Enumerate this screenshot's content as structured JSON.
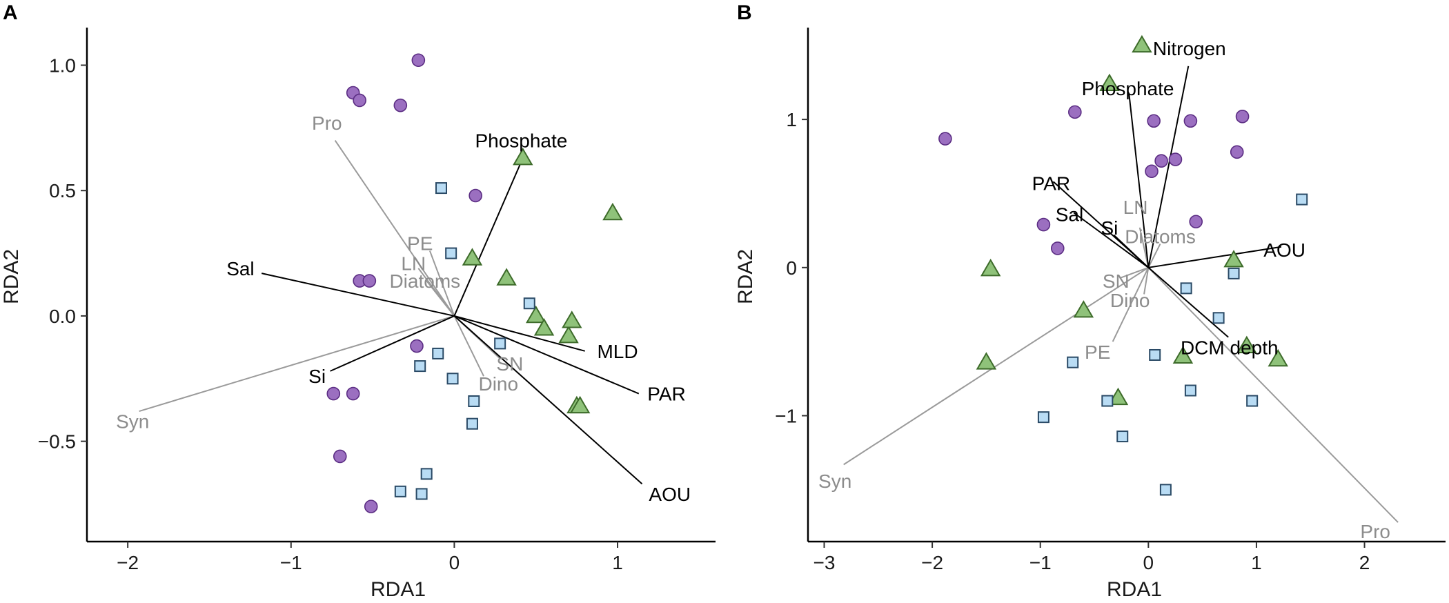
{
  "colors": {
    "circle_fill": "#9b6fc0",
    "circle_stroke": "#5b2d83",
    "triangle_fill": "#8fc27a",
    "triangle_stroke": "#3d6b2a",
    "square_fill": "#b9dcf4",
    "square_stroke": "#2a4a66",
    "env_vector": "#000000",
    "taxa_vector": "#9a9a9a",
    "env_label": "#000000",
    "taxa_label": "#8c8c8c"
  },
  "chart_data": [
    {
      "panel": "A",
      "type": "scatter",
      "xlabel": "RDA1",
      "ylabel": "RDA2",
      "xlim": [
        -2.25,
        1.6
      ],
      "ylim": [
        -0.9,
        1.15
      ],
      "xticks": [
        -2,
        -1,
        0,
        1
      ],
      "xtick_labels": [
        "−2",
        "−1",
        "0",
        "1"
      ],
      "yticks": [
        -0.5,
        0.0,
        0.5,
        1.0
      ],
      "ytick_labels": [
        "−0.5",
        "0.0",
        "0.5",
        "1.0"
      ],
      "series": [
        {
          "name": "circle",
          "marker": "circle",
          "points": [
            [
              -0.22,
              1.02
            ],
            [
              -0.62,
              0.89
            ],
            [
              -0.58,
              0.86
            ],
            [
              -0.33,
              0.84
            ],
            [
              0.13,
              0.48
            ],
            [
              -0.58,
              0.14
            ],
            [
              -0.52,
              0.14
            ],
            [
              -0.23,
              -0.12
            ],
            [
              -0.74,
              -0.31
            ],
            [
              -0.62,
              -0.31
            ],
            [
              -0.7,
              -0.56
            ],
            [
              -0.51,
              -0.76
            ]
          ]
        },
        {
          "name": "triangle",
          "marker": "triangle",
          "points": [
            [
              0.42,
              0.63
            ],
            [
              0.97,
              0.41
            ],
            [
              0.11,
              0.23
            ],
            [
              0.32,
              0.15
            ],
            [
              0.5,
              0.0
            ],
            [
              0.55,
              -0.05
            ],
            [
              0.7,
              -0.08
            ],
            [
              0.72,
              -0.02
            ],
            [
              0.75,
              -0.36
            ],
            [
              0.77,
              -0.36
            ]
          ]
        },
        {
          "name": "square",
          "marker": "square",
          "points": [
            [
              -0.08,
              0.51
            ],
            [
              -0.02,
              0.25
            ],
            [
              0.46,
              0.05
            ],
            [
              0.28,
              -0.11
            ],
            [
              -0.1,
              -0.15
            ],
            [
              -0.21,
              -0.2
            ],
            [
              -0.01,
              -0.25
            ],
            [
              0.12,
              -0.34
            ],
            [
              0.11,
              -0.43
            ],
            [
              -0.17,
              -0.63
            ],
            [
              -0.33,
              -0.7
            ],
            [
              -0.2,
              -0.71
            ]
          ]
        }
      ],
      "env_vectors": [
        {
          "label": "Phosphate",
          "end": [
            0.42,
            0.63
          ],
          "label_pos": [
            0.41,
            0.7
          ]
        },
        {
          "label": "Sal",
          "end": [
            -1.18,
            0.17
          ],
          "label_pos": [
            -1.31,
            0.19
          ]
        },
        {
          "label": "Si",
          "end": [
            -0.76,
            -0.22
          ],
          "label_pos": [
            -0.84,
            -0.24
          ]
        },
        {
          "label": "MLD",
          "end": [
            0.8,
            -0.14
          ],
          "label_pos": [
            1.0,
            -0.14
          ]
        },
        {
          "label": "PAR",
          "end": [
            1.13,
            -0.31
          ],
          "label_pos": [
            1.3,
            -0.31
          ]
        },
        {
          "label": "AOU",
          "end": [
            1.15,
            -0.67
          ],
          "label_pos": [
            1.32,
            -0.71
          ]
        }
      ],
      "taxa_vectors": [
        {
          "label": "Pro",
          "end": [
            -0.73,
            0.7
          ],
          "label_pos": [
            -0.78,
            0.77
          ]
        },
        {
          "label": "Syn",
          "end": [
            -1.93,
            -0.38
          ],
          "label_pos": [
            -1.97,
            -0.42
          ]
        },
        {
          "label": "PE",
          "end": [
            -0.15,
            0.26
          ],
          "label_pos": [
            -0.21,
            0.29
          ]
        },
        {
          "label": "LN",
          "end": [
            -0.22,
            0.19
          ],
          "label_pos": [
            -0.25,
            0.21
          ]
        },
        {
          "label": "Diatoms",
          "end": [
            -0.17,
            0.14
          ],
          "label_pos": [
            -0.18,
            0.14
          ]
        },
        {
          "label": "SN",
          "end": [
            0.28,
            -0.17
          ],
          "label_pos": [
            0.34,
            -0.19
          ]
        },
        {
          "label": "Dino",
          "end": [
            0.18,
            -0.24
          ],
          "label_pos": [
            0.27,
            -0.27
          ]
        }
      ]
    },
    {
      "panel": "B",
      "type": "scatter",
      "xlabel": "RDA1",
      "ylabel": "RDA2",
      "xlim": [
        -3.15,
        2.75
      ],
      "ylim": [
        -1.85,
        1.62
      ],
      "xticks": [
        -3,
        -2,
        -1,
        0,
        1,
        2
      ],
      "xtick_labels": [
        "−3",
        "−2",
        "−1",
        "0",
        "1",
        "2"
      ],
      "yticks": [
        -1,
        0,
        1
      ],
      "ytick_labels": [
        "−1",
        "0",
        "1"
      ],
      "series": [
        {
          "name": "circle",
          "marker": "circle",
          "points": [
            [
              -1.88,
              0.87
            ],
            [
              -0.68,
              1.05
            ],
            [
              0.05,
              0.99
            ],
            [
              0.39,
              0.99
            ],
            [
              0.87,
              1.02
            ],
            [
              0.82,
              0.78
            ],
            [
              0.12,
              0.72
            ],
            [
              0.25,
              0.73
            ],
            [
              0.03,
              0.65
            ],
            [
              0.44,
              0.31
            ],
            [
              -0.97,
              0.29
            ],
            [
              -0.84,
              0.13
            ]
          ]
        },
        {
          "name": "triangle",
          "marker": "triangle",
          "points": [
            [
              -0.06,
              1.5
            ],
            [
              -0.36,
              1.24
            ],
            [
              -1.46,
              -0.01
            ],
            [
              0.79,
              0.05
            ],
            [
              -0.6,
              -0.29
            ],
            [
              -1.5,
              -0.64
            ],
            [
              0.91,
              -0.53
            ],
            [
              0.32,
              -0.6
            ],
            [
              1.2,
              -0.62
            ],
            [
              -0.28,
              -0.88
            ]
          ]
        },
        {
          "name": "square",
          "marker": "square",
          "points": [
            [
              1.42,
              0.46
            ],
            [
              0.79,
              -0.04
            ],
            [
              0.35,
              -0.14
            ],
            [
              0.65,
              -0.34
            ],
            [
              -0.7,
              -0.64
            ],
            [
              0.06,
              -0.59
            ],
            [
              0.39,
              -0.83
            ],
            [
              -0.38,
              -0.9
            ],
            [
              0.96,
              -0.9
            ],
            [
              -0.97,
              -1.01
            ],
            [
              -0.24,
              -1.14
            ],
            [
              0.16,
              -1.5
            ]
          ]
        }
      ],
      "env_vectors": [
        {
          "label": "Nitrogen",
          "end": [
            0.37,
            1.36
          ],
          "label_pos": [
            0.38,
            1.48
          ]
        },
        {
          "label": "Phosphate",
          "end": [
            -0.18,
            1.18
          ],
          "label_pos": [
            -0.19,
            1.21
          ]
        },
        {
          "label": "PAR",
          "end": [
            -0.88,
            0.58
          ],
          "label_pos": [
            -0.9,
            0.57
          ]
        },
        {
          "label": "Sal",
          "end": [
            -0.69,
            0.37
          ],
          "label_pos": [
            -0.73,
            0.36
          ]
        },
        {
          "label": "Si",
          "end": [
            -0.32,
            0.22
          ],
          "label_pos": [
            -0.36,
            0.27
          ]
        },
        {
          "label": "AOU",
          "end": [
            1.23,
            0.14
          ],
          "label_pos": [
            1.26,
            0.12
          ]
        },
        {
          "label": "DCM depth",
          "end": [
            0.74,
            -0.47
          ],
          "label_pos": [
            0.75,
            -0.54
          ]
        }
      ],
      "taxa_vectors": [
        {
          "label": "LN",
          "end": [
            -0.08,
            0.27
          ],
          "label_pos": [
            -0.12,
            0.41
          ]
        },
        {
          "label": "Diatoms",
          "end": [
            0.11,
            0.16
          ],
          "label_pos": [
            0.11,
            0.21
          ]
        },
        {
          "label": "SN",
          "end": [
            -0.26,
            -0.07
          ],
          "label_pos": [
            -0.3,
            -0.09
          ]
        },
        {
          "label": "Dino",
          "end": [
            -0.04,
            -0.18
          ],
          "label_pos": [
            -0.17,
            -0.22
          ]
        },
        {
          "label": "PE",
          "end": [
            -0.33,
            -0.5
          ],
          "label_pos": [
            -0.47,
            -0.57
          ]
        },
        {
          "label": "Syn",
          "end": [
            -2.82,
            -1.33
          ],
          "label_pos": [
            -2.9,
            -1.44
          ]
        },
        {
          "label": "Pro",
          "end": [
            2.31,
            -1.72
          ],
          "label_pos": [
            2.1,
            -1.78
          ]
        }
      ]
    }
  ]
}
